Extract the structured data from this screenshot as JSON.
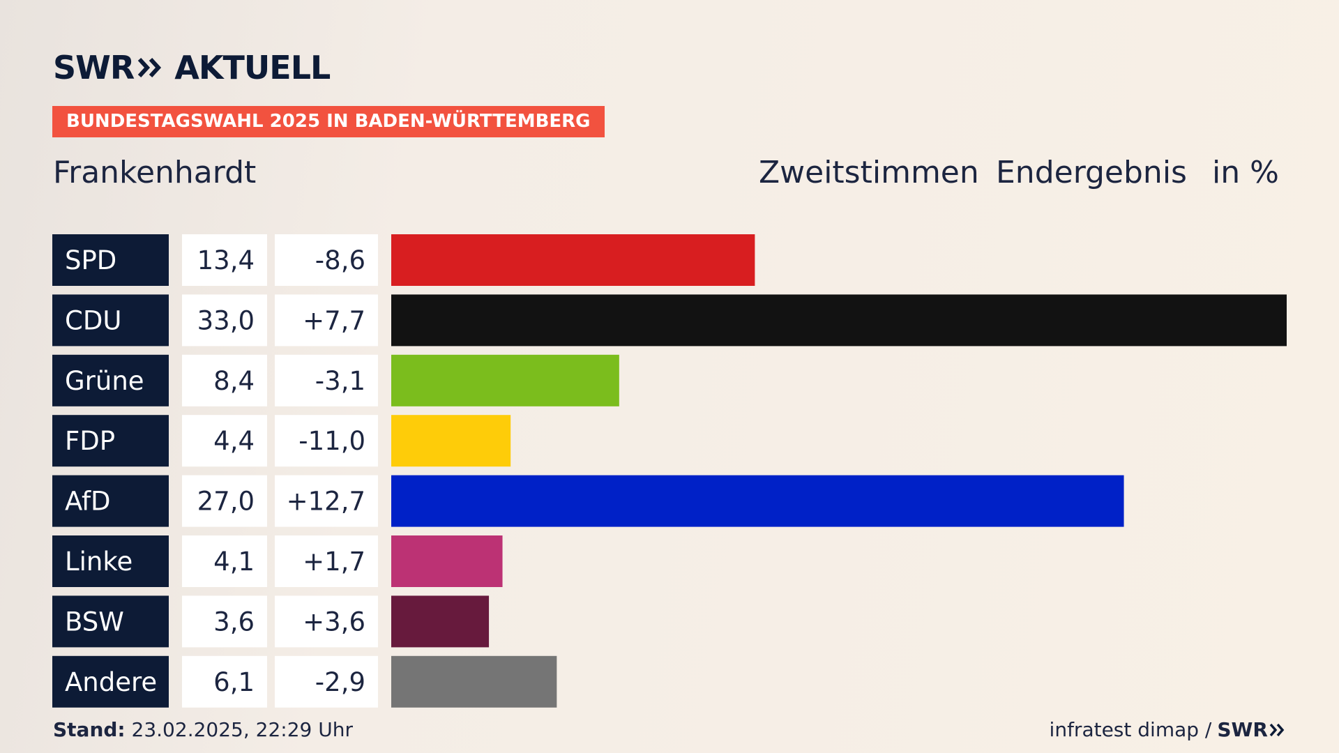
{
  "brand": {
    "swr": "SWR",
    "aktuell": "AKTUELL"
  },
  "banner": "BUNDESTAGSWAHL 2025 IN BADEN-WÜRTTEMBERG",
  "header": {
    "location": "Frankenhardt",
    "vote_type": "Zweitstimmen",
    "result_type": "Endergebnis",
    "unit": "in %"
  },
  "footer": {
    "stand_label": "Stand:",
    "stand_value": "23.02.2025, 22:29 Uhr",
    "source": "infratest dimap /",
    "source_brand": "SWR"
  },
  "chart_data": {
    "type": "bar",
    "orientation": "horizontal",
    "categories": [
      "SPD",
      "CDU",
      "Grüne",
      "FDP",
      "AfD",
      "Linke",
      "BSW",
      "Andere"
    ],
    "values": [
      13.4,
      33.0,
      8.4,
      4.4,
      27.0,
      4.1,
      3.6,
      6.1
    ],
    "value_labels": [
      "13,4",
      "33,0",
      "8,4",
      "4,4",
      "27,0",
      "4,1",
      "3,6",
      "6,1"
    ],
    "change_labels": [
      "-8,6",
      "+7,7",
      "-3,1",
      "-11,0",
      "+12,7",
      "+1,7",
      "+3,6",
      "-2,9"
    ],
    "changes": [
      -8.6,
      7.7,
      -3.1,
      -11.0,
      12.7,
      1.7,
      3.6,
      -2.9
    ],
    "colors": [
      "#d81e20",
      "#121212",
      "#7bbd1d",
      "#fecc09",
      "#0021c7",
      "#bc3274",
      "#671a3d",
      "#757575"
    ],
    "xlim": [
      0,
      33.0
    ]
  }
}
